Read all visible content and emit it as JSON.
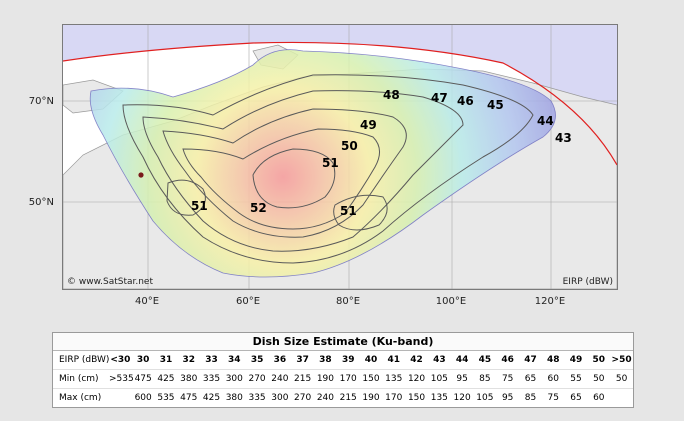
{
  "map": {
    "watermark": "© www.SatStar.net",
    "legend_unit": "EIRP (dBW)",
    "lat_labels": [
      "70°N",
      "50°N"
    ],
    "lon_labels": [
      "40°E",
      "60°E",
      "80°E",
      "100°E",
      "120°E"
    ],
    "contour_labels": [
      "48",
      "47",
      "46",
      "45",
      "44",
      "43",
      "49",
      "50",
      "51",
      "51",
      "52",
      "51"
    ],
    "colors": {
      "ocean": "#ffffff",
      "land": "#e9e9e9",
      "outside_visibility": "#d8d8f4",
      "visibility_line": "#e02020",
      "beam_edge": "#8f8fd6",
      "beam_core": "#f79a9a"
    }
  },
  "table": {
    "title": "Dish Size Estimate (Ku-band)",
    "rows": [
      {
        "label": "EIRP (dBW)",
        "cells": [
          "<30",
          "30",
          "31",
          "32",
          "33",
          "34",
          "35",
          "36",
          "37",
          "38",
          "39",
          "40",
          "41",
          "42",
          "43",
          "44",
          "45",
          "46",
          "47",
          "48",
          "49",
          "50",
          ">50"
        ]
      },
      {
        "label": "Min (cm)",
        "cells": [
          ">535",
          "475",
          "425",
          "380",
          "335",
          "300",
          "270",
          "240",
          "215",
          "190",
          "170",
          "150",
          "135",
          "120",
          "105",
          "95",
          "85",
          "75",
          "65",
          "60",
          "55",
          "50",
          "50"
        ]
      },
      {
        "label": "Max (cm)",
        "cells": [
          "",
          "600",
          "535",
          "475",
          "425",
          "380",
          "335",
          "300",
          "270",
          "240",
          "215",
          "190",
          "170",
          "150",
          "135",
          "120",
          "105",
          "95",
          "85",
          "75",
          "65",
          "60",
          ""
        ]
      }
    ]
  }
}
